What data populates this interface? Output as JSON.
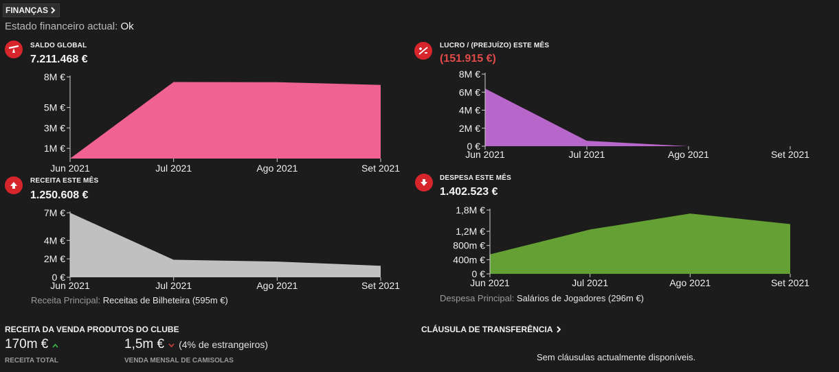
{
  "header": {
    "title": "FINANÇAS"
  },
  "status": {
    "label": "Estado financeiro actual:",
    "value": "Ok"
  },
  "colors": {
    "balance": "#f06292",
    "profit": "#b766c9",
    "income": "#c0c0c0",
    "expense": "#65a035",
    "badge": "#d7262b"
  },
  "panels": {
    "balance": {
      "title": "SALDO GLOBAL",
      "value": "7.211.468 €",
      "icon": "see-saw-icon"
    },
    "profit": {
      "title": "LUCRO / (PREJUÍZO) ESTE MÊS",
      "value": "(151.915 €)",
      "icon": "plus-minus-icon"
    },
    "income": {
      "title": "RECEITA ESTE MÊS",
      "value": "1.250.608 €",
      "icon": "arrow-up-icon",
      "note_label": "Receita Principal:",
      "note_value": "Receitas de Bilheteira (595m €)"
    },
    "expense": {
      "title": "DESPESA ESTE MÊS",
      "value": "1.402.523 €",
      "icon": "arrow-down-icon",
      "note_label": "Despesa Principal:",
      "note_value": "Salários de Jogadores (296m €)"
    }
  },
  "chart_data": [
    {
      "id": "balance",
      "type": "area",
      "x": [
        "Jun 2021",
        "Jul 2021",
        "Ago 2021",
        "Set 2021"
      ],
      "values": [
        0,
        7500000,
        7480000,
        7211468
      ],
      "ylim": [
        0,
        8000000
      ],
      "yticks": [
        {
          "v": 8000000,
          "l": "8M €"
        },
        {
          "v": 5000000,
          "l": "5M €"
        },
        {
          "v": 3000000,
          "l": "3M €"
        },
        {
          "v": 1000000,
          "l": "1M €"
        }
      ]
    },
    {
      "id": "profit",
      "type": "area",
      "x": [
        "Jun 2021",
        "Jul 2021",
        "Ago 2021",
        "Set 2021"
      ],
      "values": [
        6400000,
        600000,
        0,
        -151915
      ],
      "ylim": [
        0,
        8000000
      ],
      "yticks": [
        {
          "v": 8000000,
          "l": "8M €"
        },
        {
          "v": 6000000,
          "l": "6M €"
        },
        {
          "v": 4000000,
          "l": "4M €"
        },
        {
          "v": 2000000,
          "l": "2M €"
        },
        {
          "v": 0,
          "l": "0 €"
        }
      ]
    },
    {
      "id": "income",
      "type": "area",
      "x": [
        "Jun 2021",
        "Jul 2021",
        "Ago 2021",
        "Set 2021"
      ],
      "values": [
        7000000,
        1900000,
        1700000,
        1250608
      ],
      "ylim": [
        0,
        7000000
      ],
      "yticks": [
        {
          "v": 7000000,
          "l": "7M €"
        },
        {
          "v": 4000000,
          "l": "4M €"
        },
        {
          "v": 2000000,
          "l": "2M €"
        },
        {
          "v": 0,
          "l": "0 €"
        }
      ]
    },
    {
      "id": "expense",
      "type": "area",
      "x": [
        "Jun 2021",
        "Jul 2021",
        "Ago 2021",
        "Set 2021"
      ],
      "values": [
        550000,
        1250000,
        1700000,
        1402523
      ],
      "ylim": [
        0,
        1800000
      ],
      "yticks": [
        {
          "v": 1800000,
          "l": "1,8M €"
        },
        {
          "v": 1200000,
          "l": "1,2M €"
        },
        {
          "v": 800000,
          "l": "800m €"
        },
        {
          "v": 400000,
          "l": "400m €"
        },
        {
          "v": 0,
          "l": "0 €"
        }
      ]
    }
  ],
  "merch": {
    "title": "RECEITA DA VENDA PRODUTOS DO CLUBE",
    "total_value": "170m €",
    "total_label": "RECEITA TOTAL",
    "shirts_value": "1,5m €",
    "shirts_extra": "(4% de estrangeiros)",
    "shirts_label": "VENDA MENSAL DE CAMISOLAS"
  },
  "transfer": {
    "title": "CLÁUSULA DE TRANSFERÊNCIA",
    "empty": "Sem cláusulas actualmente disponíveis."
  }
}
